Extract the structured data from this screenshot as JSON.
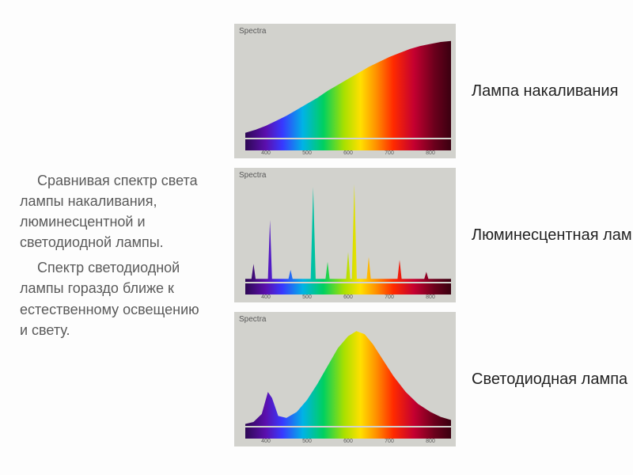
{
  "left_text": {
    "p1": "Сравнивая спектр света лампы накаливания, люминесцентной и светодиодной лампы.",
    "p2": "Спектр светодиодной лампы гораздо ближе к естественному освещению и свету."
  },
  "chart_common": {
    "title": "Spectra",
    "x_ticks": [
      "400",
      "500",
      "600",
      "700",
      "800"
    ],
    "plot_bg": "#d2d2cd",
    "spectrum_stops": [
      {
        "o": 0.0,
        "c": "#2e0854"
      },
      {
        "o": 0.1,
        "c": "#5b0fae"
      },
      {
        "o": 0.18,
        "c": "#3838ff"
      },
      {
        "o": 0.28,
        "c": "#00b3e6"
      },
      {
        "o": 0.38,
        "c": "#00d060"
      },
      {
        "o": 0.48,
        "c": "#a8e000"
      },
      {
        "o": 0.56,
        "c": "#ffe000"
      },
      {
        "o": 0.64,
        "c": "#ff8c00"
      },
      {
        "o": 0.72,
        "c": "#ff2a00"
      },
      {
        "o": 0.82,
        "c": "#c40030"
      },
      {
        "o": 0.92,
        "c": "#6b001c"
      },
      {
        "o": 1.0,
        "c": "#3a0010"
      }
    ]
  },
  "charts": [
    {
      "label": "Лампа накаливания",
      "type": "area-spectrum",
      "curve": [
        {
          "x": 0.0,
          "y": 0.05
        },
        {
          "x": 0.05,
          "y": 0.08
        },
        {
          "x": 0.1,
          "y": 0.12
        },
        {
          "x": 0.15,
          "y": 0.17
        },
        {
          "x": 0.2,
          "y": 0.22
        },
        {
          "x": 0.25,
          "y": 0.28
        },
        {
          "x": 0.3,
          "y": 0.34
        },
        {
          "x": 0.35,
          "y": 0.4
        },
        {
          "x": 0.4,
          "y": 0.47
        },
        {
          "x": 0.45,
          "y": 0.53
        },
        {
          "x": 0.5,
          "y": 0.59
        },
        {
          "x": 0.55,
          "y": 0.65
        },
        {
          "x": 0.6,
          "y": 0.71
        },
        {
          "x": 0.65,
          "y": 0.76
        },
        {
          "x": 0.7,
          "y": 0.81
        },
        {
          "x": 0.75,
          "y": 0.85
        },
        {
          "x": 0.8,
          "y": 0.89
        },
        {
          "x": 0.85,
          "y": 0.92
        },
        {
          "x": 0.9,
          "y": 0.94
        },
        {
          "x": 0.95,
          "y": 0.96
        },
        {
          "x": 1.0,
          "y": 0.97
        }
      ]
    },
    {
      "label": "Люминесцентная лампа",
      "type": "peaks-spectrum",
      "baseline": 0.03,
      "peaks": [
        {
          "x": 0.04,
          "h": 0.18,
          "w": 0.01
        },
        {
          "x": 0.12,
          "h": 0.62,
          "w": 0.01
        },
        {
          "x": 0.22,
          "h": 0.12,
          "w": 0.01
        },
        {
          "x": 0.33,
          "h": 0.95,
          "w": 0.012
        },
        {
          "x": 0.4,
          "h": 0.2,
          "w": 0.01
        },
        {
          "x": 0.5,
          "h": 0.3,
          "w": 0.01
        },
        {
          "x": 0.53,
          "h": 0.98,
          "w": 0.012
        },
        {
          "x": 0.6,
          "h": 0.25,
          "w": 0.01
        },
        {
          "x": 0.75,
          "h": 0.22,
          "w": 0.01
        },
        {
          "x": 0.88,
          "h": 0.1,
          "w": 0.01
        }
      ]
    },
    {
      "label": "Светодиодная лампа",
      "type": "area-spectrum",
      "curve": [
        {
          "x": 0.0,
          "y": 0.02
        },
        {
          "x": 0.04,
          "y": 0.04
        },
        {
          "x": 0.08,
          "y": 0.12
        },
        {
          "x": 0.11,
          "y": 0.34
        },
        {
          "x": 0.13,
          "y": 0.28
        },
        {
          "x": 0.16,
          "y": 0.1
        },
        {
          "x": 0.2,
          "y": 0.08
        },
        {
          "x": 0.25,
          "y": 0.14
        },
        {
          "x": 0.3,
          "y": 0.26
        },
        {
          "x": 0.35,
          "y": 0.42
        },
        {
          "x": 0.4,
          "y": 0.6
        },
        {
          "x": 0.45,
          "y": 0.78
        },
        {
          "x": 0.5,
          "y": 0.9
        },
        {
          "x": 0.54,
          "y": 0.95
        },
        {
          "x": 0.58,
          "y": 0.92
        },
        {
          "x": 0.62,
          "y": 0.82
        },
        {
          "x": 0.67,
          "y": 0.66
        },
        {
          "x": 0.72,
          "y": 0.5
        },
        {
          "x": 0.78,
          "y": 0.34
        },
        {
          "x": 0.84,
          "y": 0.22
        },
        {
          "x": 0.9,
          "y": 0.14
        },
        {
          "x": 0.95,
          "y": 0.09
        },
        {
          "x": 1.0,
          "y": 0.06
        }
      ]
    }
  ]
}
